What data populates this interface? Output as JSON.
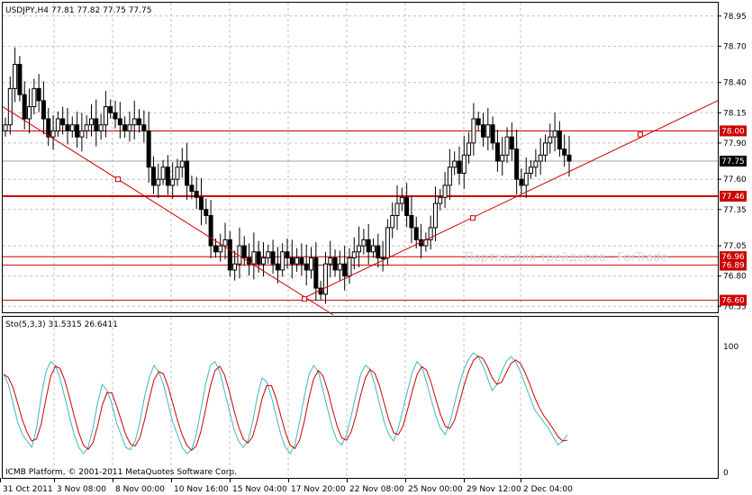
{
  "header": {
    "symbol_info": "USDJPY,H4  77.81 77.82 77.75 77.75",
    "indicator_info": "Sto(5,3,3) 31.5315 26.6411",
    "copyright": "ICMB Platform, © 2001-2011 MetaQuotes Software Corp.",
    "watermark": "Портал для трейдеров - ForTrade"
  },
  "colors": {
    "background": "#ffffff",
    "axis": "#000000",
    "grid": "#c0c0c0",
    "candle_up": "#ffffff",
    "candle_down": "#000000",
    "level_line": "#cc0000",
    "trendline": "#cc0000",
    "stoch_main": "#3cb8c0",
    "stoch_signal": "#cc0000",
    "bid_line": "#a0a0a0"
  },
  "chart_data": [
    {
      "type": "candlestick",
      "symbol": "USDJPY",
      "timeframe": "H4",
      "ohlc_header": {
        "open": 77.81,
        "high": 77.82,
        "low": 77.75,
        "close": 77.75
      },
      "ylim": [
        76.5,
        79.06
      ],
      "y_ticks": [
        78.95,
        78.7,
        78.4,
        78.15,
        77.9,
        77.6,
        77.35,
        77.05,
        76.8,
        76.55
      ],
      "x_ticks": [
        "31 Oct 2011",
        "3 Nov 08:00",
        "8 Nov 00:00",
        "10 Nov 16:00",
        "15 Nov 04:00",
        "17 Nov 20:00",
        "22 Nov 08:00",
        "25 Nov 00:00",
        "29 Nov 12:00",
        "2 Dec 04:00"
      ],
      "current_price": {
        "value": 77.75,
        "label": "77.75"
      },
      "levels": [
        {
          "value": 78.0,
          "label": "78.00"
        },
        {
          "value": 77.46,
          "label": "77.46"
        },
        {
          "value": 76.96,
          "label": "76.96"
        },
        {
          "value": 76.89,
          "label": "76.89"
        },
        {
          "value": 76.6,
          "label": "76.60"
        }
      ],
      "trendlines": [
        {
          "from": {
            "bar": 0,
            "price": 78.2
          },
          "to": {
            "bar": 66,
            "price": 76.62
          }
        },
        {
          "from": {
            "bar": 66,
            "price": 76.62
          },
          "to": {
            "bar": 199,
            "price": 78.25
          }
        }
      ],
      "closes": [
        78.05,
        78.35,
        78.55,
        78.3,
        78.1,
        78.2,
        78.35,
        78.25,
        78.1,
        77.95,
        78.0,
        78.1,
        78.05,
        78.0,
        78.05,
        77.95,
        78.0,
        78.05,
        78.1,
        78.0,
        78.05,
        78.2,
        78.15,
        78.1,
        78.05,
        78.0,
        78.05,
        78.1,
        78.05,
        78.0,
        77.7,
        77.55,
        77.6,
        77.7,
        77.55,
        77.6,
        77.7,
        77.75,
        77.55,
        77.5,
        77.45,
        77.35,
        77.3,
        77.05,
        77.0,
        77.05,
        77.1,
        76.85,
        76.9,
        77.05,
        76.95,
        76.9,
        77.0,
        76.9,
        76.95,
        77.0,
        76.9,
        76.85,
        77.0,
        76.95,
        76.9,
        76.95,
        76.9,
        76.85,
        76.95,
        76.7,
        76.65,
        76.9,
        76.95,
        76.85,
        76.9,
        76.8,
        76.95,
        77.0,
        77.05,
        77.1,
        77.0,
        77.05,
        76.95,
        76.95,
        77.2,
        77.3,
        77.4,
        77.45,
        77.3,
        77.2,
        77.1,
        77.05,
        77.1,
        77.2,
        77.4,
        77.45,
        77.55,
        77.7,
        77.75,
        77.65,
        77.8,
        77.9,
        78.1,
        78.05,
        77.95,
        78.05,
        77.9,
        77.75,
        77.8,
        77.95,
        77.85,
        77.6,
        77.55,
        77.65,
        77.7,
        77.75,
        77.8,
        77.9,
        77.95,
        78.0,
        77.85,
        77.8,
        77.75
      ],
      "stochastic": {
        "name": "Sto(5,3,3)",
        "main_value": 31.5315,
        "signal_value": 26.6411,
        "ylim": [
          0,
          100
        ],
        "y_ticks": [
          100,
          0
        ],
        "main": [
          78,
          70,
          55,
          40,
          30,
          25,
          20,
          35,
          60,
          80,
          88,
          85,
          75,
          60,
          45,
          30,
          20,
          15,
          20,
          35,
          55,
          70,
          65,
          55,
          40,
          30,
          20,
          18,
          25,
          40,
          60,
          75,
          85,
          80,
          70,
          55,
          40,
          30,
          20,
          15,
          18,
          30,
          50,
          70,
          85,
          88,
          80,
          65,
          50,
          35,
          25,
          20,
          25,
          40,
          60,
          75,
          72,
          60,
          45,
          30,
          20,
          15,
          22,
          40,
          60,
          78,
          85,
          80,
          65,
          50,
          35,
          25,
          22,
          30,
          45,
          62,
          78,
          85,
          82,
          70,
          55,
          40,
          30,
          25,
          35,
          50,
          65,
          80,
          88,
          84,
          72,
          58,
          45,
          35,
          30,
          40,
          55,
          70,
          82,
          90,
          95,
          92,
          85,
          75,
          65,
          70,
          80,
          88,
          92,
          88,
          80,
          70,
          60,
          50,
          45,
          40,
          35,
          28,
          22,
          25,
          30
        ]
      }
    }
  ]
}
